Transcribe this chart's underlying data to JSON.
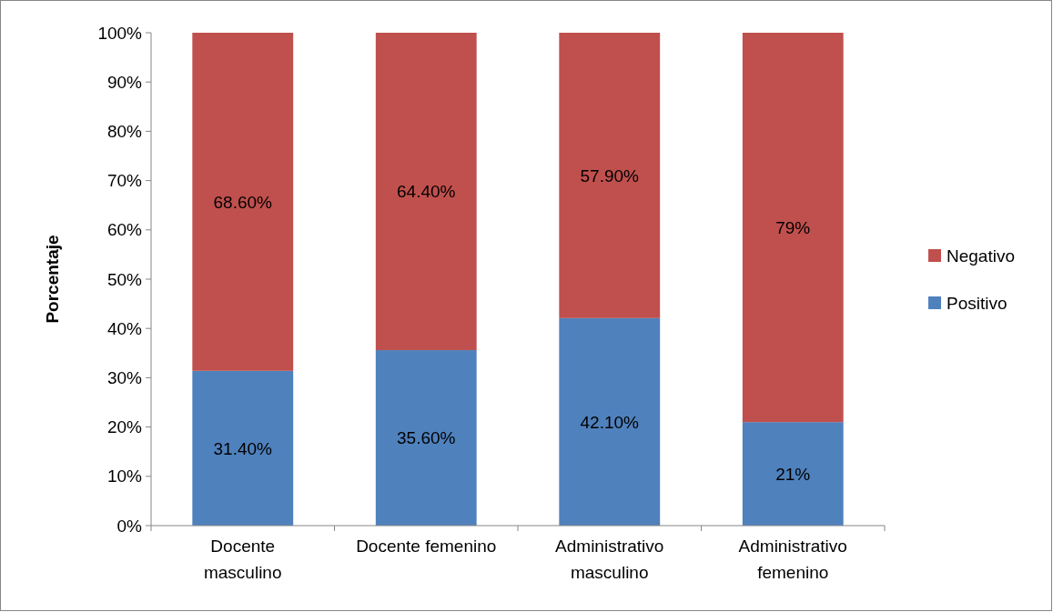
{
  "chart_data": {
    "type": "bar",
    "stacked": true,
    "ylabel": "Porcentaje",
    "categories": [
      "Docente masculino",
      "Docente femenino",
      "Administrativo masculino",
      "Administrativo femenino"
    ],
    "series": [
      {
        "name": "Positivo",
        "color": "#4f81bd",
        "values": [
          31.4,
          35.6,
          42.1,
          21
        ],
        "value_labels": [
          "31.40%",
          "35.60%",
          "42.10%",
          "21%"
        ]
      },
      {
        "name": "Negativo",
        "color": "#c0504d",
        "values": [
          68.6,
          64.4,
          57.9,
          79
        ],
        "value_labels": [
          "68.60%",
          "64.40%",
          "57.90%",
          "79%"
        ]
      }
    ],
    "ylim": [
      0,
      100
    ],
    "yticks": [
      {
        "value": 0,
        "label": "0%"
      },
      {
        "value": 10,
        "label": "10%"
      },
      {
        "value": 20,
        "label": "20%"
      },
      {
        "value": 30,
        "label": "30%"
      },
      {
        "value": 40,
        "label": "40%"
      },
      {
        "value": 50,
        "label": "50%"
      },
      {
        "value": 60,
        "label": "60%"
      },
      {
        "value": 70,
        "label": "70%"
      },
      {
        "value": 80,
        "label": "80%"
      },
      {
        "value": 90,
        "label": "90%"
      },
      {
        "value": 100,
        "label": "100%"
      }
    ],
    "grid": false,
    "legend": "right"
  }
}
